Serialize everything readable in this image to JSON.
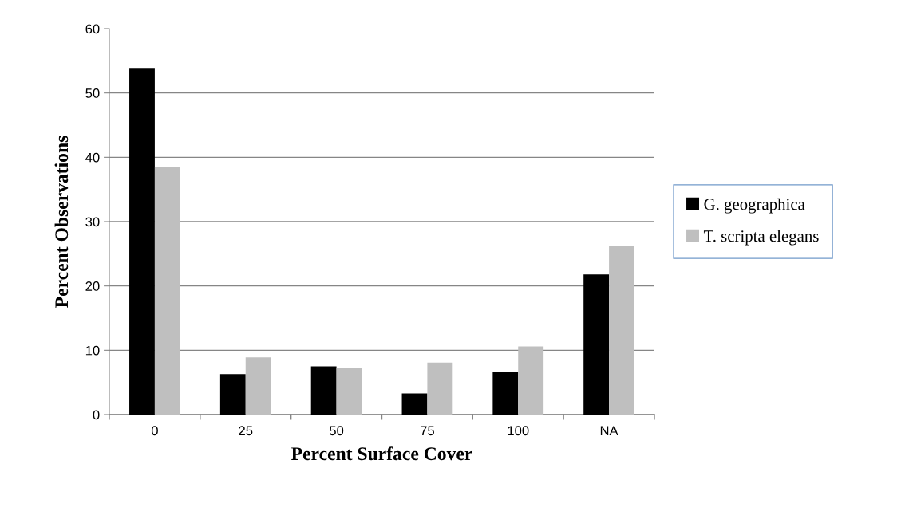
{
  "chart_data": {
    "type": "bar",
    "xlabel": "Percent Surface Cover",
    "ylabel": "Percent Observations",
    "categories": [
      "0",
      "25",
      "50",
      "75",
      "100",
      "NA"
    ],
    "series": [
      {
        "name": "G. geographica",
        "color": "#000000",
        "values": [
          53.9,
          6.3,
          7.5,
          3.3,
          6.7,
          21.8
        ]
      },
      {
        "name": "T. scripta elegans",
        "color": "#bfbfbf",
        "values": [
          38.5,
          8.9,
          7.3,
          8.1,
          10.6,
          26.2
        ]
      }
    ],
    "ylim": [
      0,
      60
    ],
    "yticks": [
      0,
      10,
      20,
      30,
      40,
      50,
      60
    ],
    "grid": "y",
    "legend": "right"
  }
}
